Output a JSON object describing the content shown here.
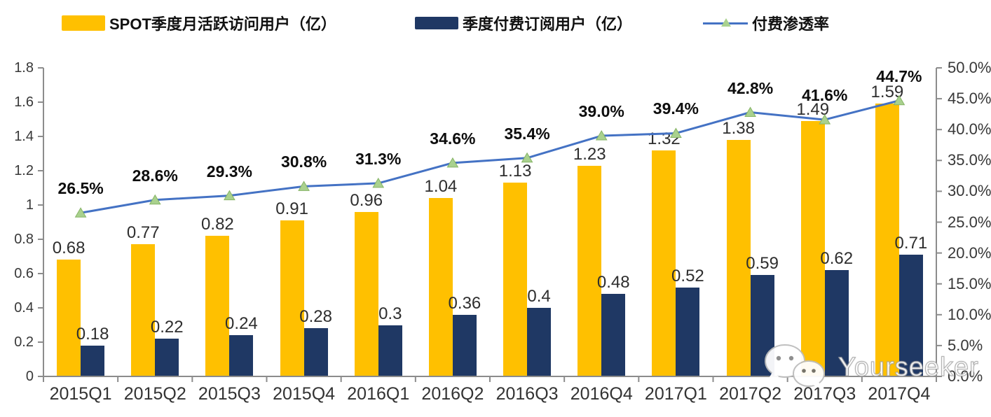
{
  "legend": {
    "items": [
      {
        "label": "SPOT季度月活跃访问用户（亿）",
        "swatch": "bar",
        "color": "#FFC000"
      },
      {
        "label": "季度付费订阅用户（亿）",
        "swatch": "bar",
        "color": "#1F3864"
      },
      {
        "label": "付费渗透率",
        "swatch": "line",
        "color": "#4472C4",
        "marker": "triangle",
        "marker_color": "#A9D18E"
      }
    ]
  },
  "watermark": {
    "text": "Yourseeker",
    "icon": "wechat-icon"
  },
  "chart_data": {
    "type": "bar",
    "subtype": "combo dual-axis: two bar series (left axis) + one line series with triangle markers (right axis)",
    "title": "",
    "categories": [
      "2015Q1",
      "2015Q2",
      "2015Q3",
      "2015Q4",
      "2016Q1",
      "2016Q2",
      "2016Q3",
      "2016Q4",
      "2017Q1",
      "2017Q2",
      "2017Q3",
      "2017Q4"
    ],
    "series": [
      {
        "name": "SPOT季度月活跃访问用户（亿）",
        "type": "bar",
        "axis": "left",
        "color": "#FFC000",
        "values": [
          0.68,
          0.77,
          0.82,
          0.91,
          0.96,
          1.04,
          1.13,
          1.23,
          1.32,
          1.38,
          1.49,
          1.59
        ],
        "labels": [
          "0.68",
          "0.77",
          "0.82",
          "0.91",
          "0.96",
          "1.04",
          "1.13",
          "1.23",
          "1.32",
          "1.38",
          "1.49",
          "1.59"
        ]
      },
      {
        "name": "季度付费订阅用户（亿）",
        "type": "bar",
        "axis": "left",
        "color": "#1F3864",
        "values": [
          0.18,
          0.22,
          0.24,
          0.28,
          0.3,
          0.36,
          0.4,
          0.48,
          0.52,
          0.59,
          0.62,
          0.71
        ],
        "labels": [
          "0.18",
          "0.22",
          "0.24",
          "0.28",
          "0.3",
          "0.36",
          "0.4",
          "0.48",
          "0.52",
          "0.59",
          "0.62",
          "0.71"
        ]
      },
      {
        "name": "付费渗透率",
        "type": "line",
        "axis": "right",
        "color": "#4472C4",
        "marker": "triangle",
        "marker_color": "#A9D18E",
        "values": [
          26.5,
          28.6,
          29.3,
          30.8,
          31.3,
          34.6,
          35.4,
          39.0,
          39.4,
          42.8,
          41.6,
          44.7
        ],
        "labels": [
          "26.5%",
          "28.6%",
          "29.3%",
          "30.8%",
          "31.3%",
          "34.6%",
          "35.4%",
          "39.0%",
          "39.4%",
          "42.8%",
          "41.6%",
          "44.7%"
        ]
      }
    ],
    "left_axis": {
      "min": 0,
      "max": 1.8,
      "step": 0.2,
      "tick_labels": [
        "0",
        "0.2",
        "0.4",
        "0.6",
        "0.8",
        "1",
        "1.2",
        "1.4",
        "1.6",
        "1.8"
      ]
    },
    "right_axis": {
      "min": 0,
      "max": 50,
      "step": 5,
      "tick_labels": [
        "0.0%",
        "5.0%",
        "10.0%",
        "15.0%",
        "20.0%",
        "25.0%",
        "30.0%",
        "35.0%",
        "40.0%",
        "45.0%",
        "50.0%"
      ]
    },
    "grid": false,
    "legend_position": "top"
  }
}
